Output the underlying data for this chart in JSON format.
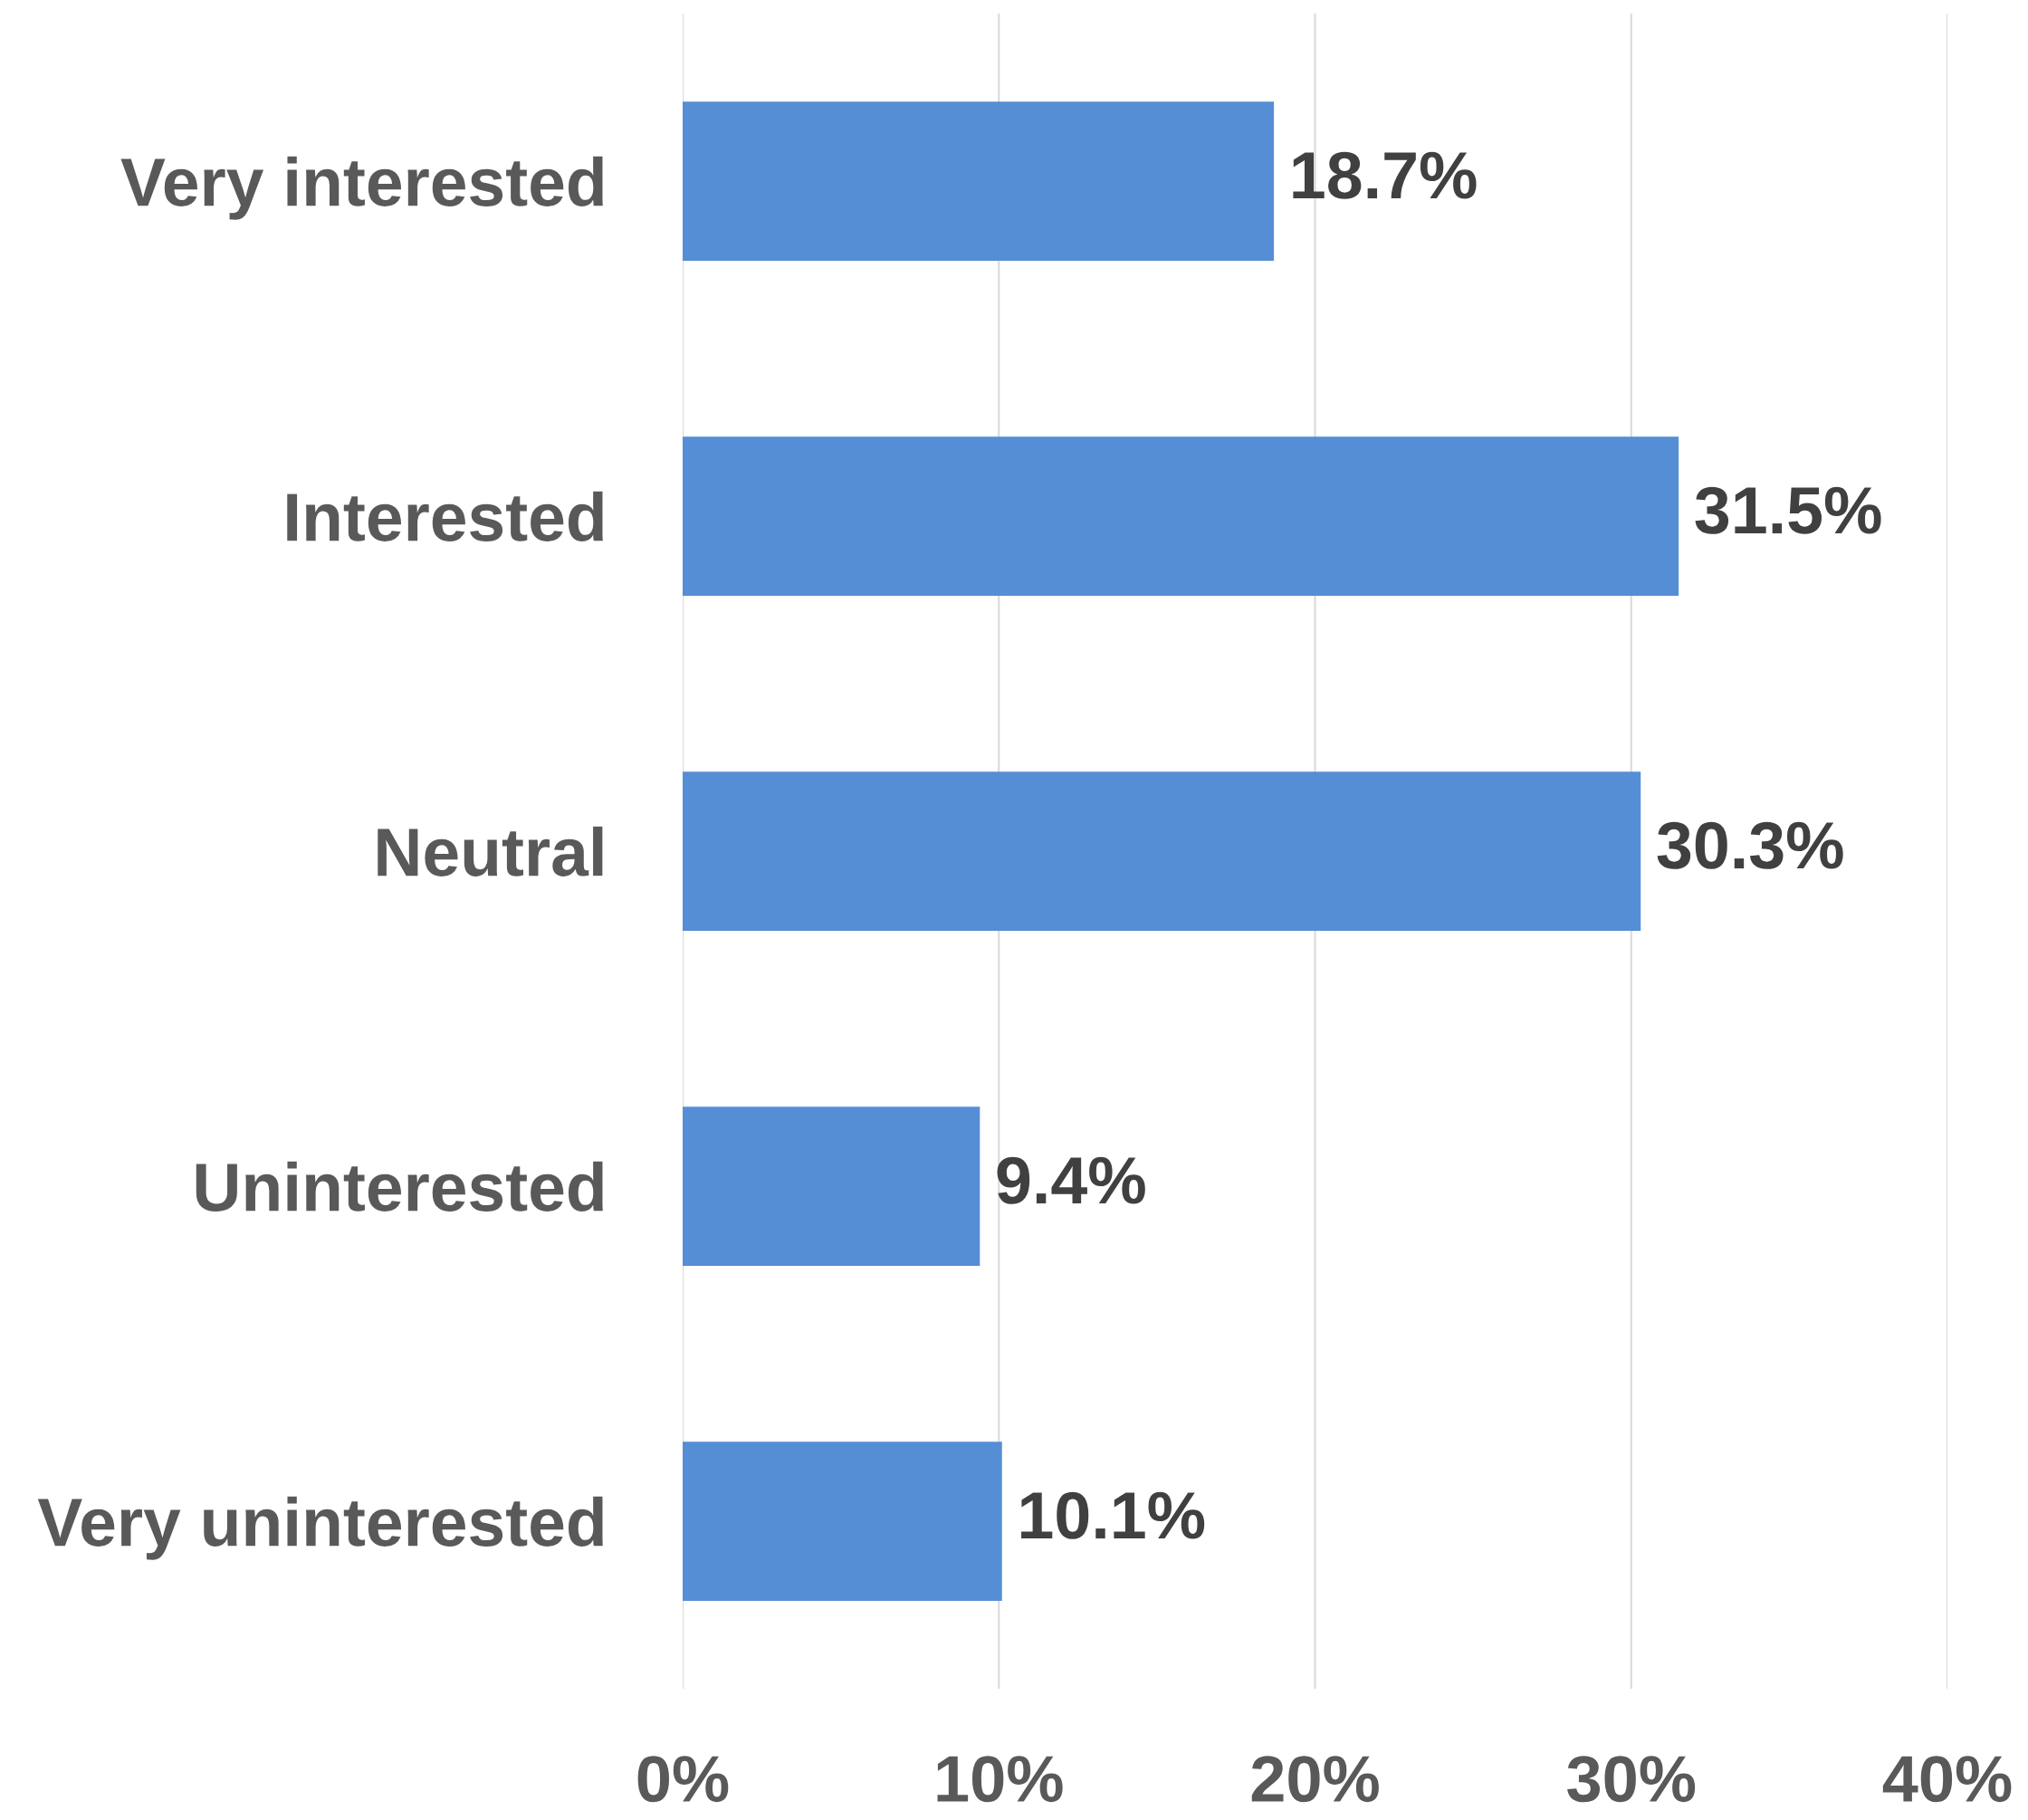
{
  "chart_data": {
    "type": "bar",
    "orientation": "horizontal",
    "categories": [
      "Very interested",
      "Interested",
      "Neutral",
      "Uninterested",
      "Very uninterested"
    ],
    "values": [
      18.7,
      31.5,
      30.3,
      9.4,
      10.1
    ],
    "value_labels": [
      "18.7%",
      "31.5%",
      "30.3%",
      "9.4%",
      "10.1%"
    ],
    "color": "#558ed5",
    "xlim": [
      0,
      40
    ],
    "xticks": [
      {
        "value": 0,
        "label": "0%"
      },
      {
        "value": 10,
        "label": "10%"
      },
      {
        "value": 20,
        "label": "20%"
      },
      {
        "value": 30,
        "label": "30%"
      },
      {
        "value": 40,
        "label": "40%"
      }
    ],
    "grid": "x",
    "legend": false
  }
}
